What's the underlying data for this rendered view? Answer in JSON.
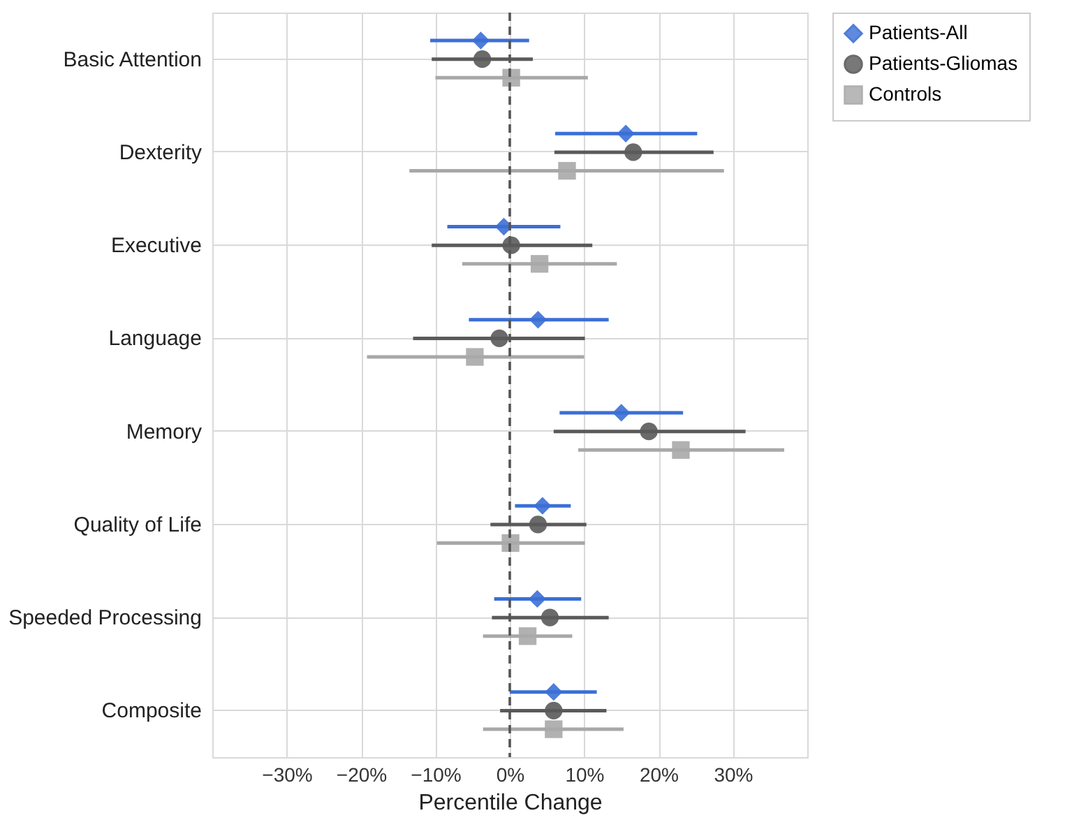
{
  "chart_data": {
    "type": "scatter",
    "orientation": "horizontal",
    "xlabel": "Percentile Change",
    "categories": [
      "Basic Attention",
      "Dexterity",
      "Executive",
      "Language",
      "Memory",
      "Quality of Life",
      "Speeded Processing",
      "Composite"
    ],
    "series": [
      {
        "name": "Patients-All",
        "color": "#3b6fd6",
        "marker": "diamond",
        "values": [
          -3.9,
          15.6,
          -0.8,
          3.8,
          15.0,
          4.4,
          3.7,
          5.9
        ],
        "errors": [
          [
            -10.7,
            2.6
          ],
          [
            6.1,
            25.2
          ],
          [
            -8.4,
            6.8
          ],
          [
            -5.5,
            13.3
          ],
          [
            6.7,
            23.3
          ],
          [
            0.7,
            8.2
          ],
          [
            -2.1,
            9.6
          ],
          [
            0.0,
            11.7
          ]
        ]
      },
      {
        "name": "Patients-Gliomas",
        "color": "#5a5a5a",
        "marker": "circle",
        "values": [
          -3.7,
          16.6,
          0.2,
          -1.4,
          18.7,
          3.8,
          5.4,
          5.9
        ],
        "errors": [
          [
            -10.5,
            3.1
          ],
          [
            6.0,
            27.4
          ],
          [
            -10.5,
            11.1
          ],
          [
            -13.0,
            10.1
          ],
          [
            5.9,
            31.7
          ],
          [
            -2.6,
            10.3
          ],
          [
            -2.4,
            13.3
          ],
          [
            -1.3,
            13.0
          ]
        ]
      },
      {
        "name": "Controls",
        "color": "#a8a8a8",
        "marker": "square",
        "values": [
          0.2,
          7.7,
          4.0,
          -4.7,
          23.0,
          0.1,
          2.4,
          5.9
        ],
        "errors": [
          [
            -10.0,
            10.5
          ],
          [
            -13.5,
            28.8
          ],
          [
            -6.4,
            14.4
          ],
          [
            -19.2,
            10.0
          ],
          [
            9.2,
            36.9
          ],
          [
            -9.8,
            10.1
          ],
          [
            -3.6,
            8.4
          ],
          [
            -3.6,
            15.3
          ]
        ]
      }
    ],
    "xlim": [
      -40,
      40
    ],
    "xticks": [
      {
        "value": -30,
        "label": "−30%"
      },
      {
        "value": -20,
        "label": "−20%"
      },
      {
        "value": -10,
        "label": "−10%"
      },
      {
        "value": 0,
        "label": "0%"
      },
      {
        "value": 10,
        "label": "10%"
      },
      {
        "value": 20,
        "label": "20%"
      },
      {
        "value": 30,
        "label": "30%"
      }
    ],
    "ref_lines": [
      {
        "axis": "x",
        "value": 0,
        "color": "#555555",
        "line_style": "dashed"
      }
    ],
    "grid": true,
    "legend": "top right"
  }
}
